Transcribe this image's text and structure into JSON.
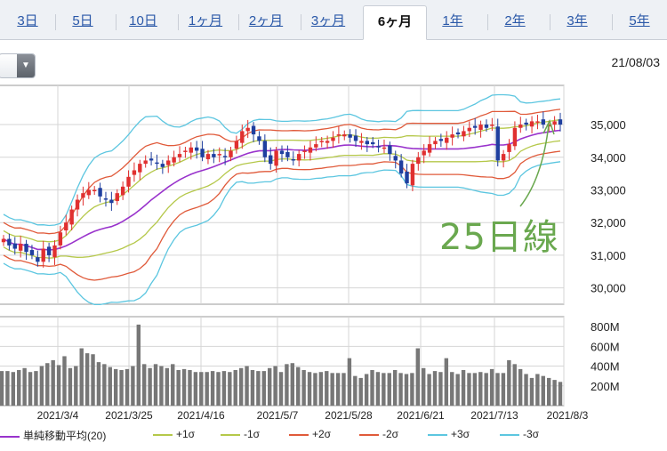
{
  "tabs": [
    {
      "label": "3日",
      "active": false
    },
    {
      "label": "5日",
      "active": false
    },
    {
      "label": "10日",
      "active": false
    },
    {
      "label": "1ヶ月",
      "active": false
    },
    {
      "label": "2ヶ月",
      "active": false
    },
    {
      "label": "3ヶ月",
      "active": false
    },
    {
      "label": "6ヶ月",
      "active": true
    },
    {
      "label": "1年",
      "active": false
    },
    {
      "label": "2年",
      "active": false
    },
    {
      "label": "3年",
      "active": false
    },
    {
      "label": "5年",
      "active": false
    }
  ],
  "header": {
    "date": "21/08/03",
    "dropdown_icon": "triangle-down"
  },
  "annotation": {
    "text": "25日線",
    "color": "#6aa84f"
  },
  "colors": {
    "up": "#e03030",
    "down": "#1f3f9f",
    "ma": "#9933cc",
    "sigma1": "#b5c84a",
    "sigma2": "#e05a3a",
    "sigma3": "#5cc6e0",
    "volume": "#777777"
  },
  "chart_data": [
    {
      "type": "candlestick",
      "ylim": [
        29500,
        36200
      ],
      "yticks": [
        "35,000",
        "34,000",
        "33,000",
        "32,000",
        "31,000",
        "30,000"
      ],
      "ytick_values": [
        35000,
        34000,
        33000,
        32000,
        31000,
        30000
      ],
      "grid": true,
      "price_close_approx": [
        31500,
        31300,
        31200,
        31350,
        31100,
        31000,
        30800,
        31200,
        31000,
        31300,
        31700,
        32000,
        32400,
        32700,
        32900,
        33000,
        33000,
        32800,
        32700,
        32600,
        32900,
        33100,
        33400,
        33600,
        33800,
        33900,
        33900,
        33800,
        33700,
        33900,
        34000,
        34100,
        34200,
        34300,
        34200,
        34000,
        34100,
        34000,
        34100,
        34000,
        34200,
        34500,
        34800,
        34900,
        34700,
        34500,
        34000,
        33800,
        34200,
        34100,
        34000,
        33900,
        34100,
        34200,
        34300,
        34400,
        34500,
        34500,
        34600,
        34700,
        34700,
        34600,
        34500,
        34500,
        34400,
        34400,
        34300,
        34300,
        34100,
        33900,
        33500,
        33200,
        33800,
        34000,
        34200,
        34400,
        34500,
        34500,
        34600,
        34700,
        34700,
        34800,
        34900,
        34900,
        35000,
        34900,
        35000,
        33900,
        34100,
        34400,
        34900,
        35000,
        35000,
        35100,
        35100,
        35000,
        35000,
        35100,
        35000
      ]
    },
    {
      "type": "bar",
      "series_name": "volume",
      "ylim": [
        0,
        900
      ],
      "yticks": [
        "800M",
        "600M",
        "400M",
        "200M"
      ],
      "ytick_values": [
        800,
        600,
        400,
        200
      ],
      "values_approx": [
        350,
        350,
        340,
        360,
        380,
        340,
        350,
        400,
        430,
        460,
        410,
        500,
        380,
        400,
        580,
        530,
        520,
        440,
        420,
        390,
        370,
        360,
        370,
        400,
        820,
        420,
        380,
        420,
        400,
        380,
        420,
        360,
        370,
        360,
        340,
        340,
        340,
        350,
        340,
        350,
        340,
        360,
        380,
        400,
        360,
        350,
        350,
        380,
        400,
        340,
        420,
        430,
        390,
        360,
        340,
        330,
        340,
        350,
        330,
        330,
        330,
        480,
        300,
        280,
        320,
        360,
        340,
        330,
        330,
        360,
        330,
        320,
        330,
        580,
        380,
        320,
        350,
        340,
        480,
        340,
        320,
        360,
        330,
        330,
        340,
        330,
        370,
        330,
        330,
        460,
        420,
        370,
        320,
        280,
        320,
        300,
        280,
        260,
        240
      ],
      "x_tick_labels": [
        "2021/3/4",
        "2021/3/25",
        "2021/4/16",
        "2021/5/7",
        "2021/5/28",
        "2021/6/21",
        "2021/7/13",
        "2021/8/3"
      ]
    }
  ],
  "legend": [
    {
      "label": "単純移動平均(20)",
      "color": "#9933cc"
    },
    {
      "label": "+1σ",
      "color": "#b5c84a"
    },
    {
      "label": "-1σ",
      "color": "#b5c84a"
    },
    {
      "label": "+2σ",
      "color": "#e05a3a"
    },
    {
      "label": "-2σ",
      "color": "#e05a3a"
    },
    {
      "label": "+3σ",
      "color": "#5cc6e0"
    },
    {
      "label": "-3σ",
      "color": "#5cc6e0"
    }
  ]
}
